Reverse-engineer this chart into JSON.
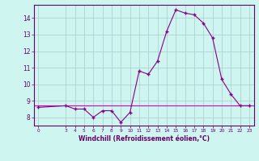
{
  "x": [
    0,
    3,
    4,
    5,
    6,
    7,
    8,
    9,
    10,
    11,
    12,
    13,
    14,
    15,
    16,
    17,
    18,
    19,
    20,
    21,
    22,
    23
  ],
  "y": [
    8.6,
    8.7,
    8.5,
    8.5,
    8.0,
    8.4,
    8.4,
    7.7,
    8.3,
    10.8,
    10.6,
    11.4,
    13.2,
    14.5,
    14.3,
    14.2,
    13.7,
    12.8,
    10.3,
    9.4,
    8.7,
    8.7
  ],
  "hline_y": 8.7,
  "line_color": "#880088",
  "hline_color": "#cc00cc",
  "bg_color": "#cef5f0",
  "grid_color": "#aacccc",
  "axis_color": "#660066",
  "xlabel": "Windchill (Refroidissement éolien,°C)",
  "ylim": [
    7.5,
    14.8
  ],
  "xlim": [
    -0.5,
    23.5
  ],
  "yticks": [
    8,
    9,
    10,
    11,
    12,
    13,
    14
  ],
  "xticks": [
    0,
    3,
    4,
    5,
    6,
    7,
    8,
    9,
    10,
    11,
    12,
    13,
    14,
    15,
    16,
    17,
    18,
    19,
    20,
    21,
    22,
    23
  ]
}
